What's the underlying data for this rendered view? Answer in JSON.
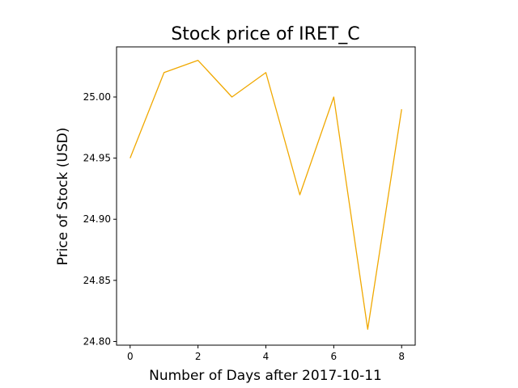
{
  "chart_data": {
    "type": "line",
    "title": "Stock price of IRET_C",
    "xlabel": "Number of Days after 2017-10-11",
    "ylabel": "Price of Stock (USD)",
    "xlim": [
      -0.4,
      8.4
    ],
    "ylim": [
      24.797,
      25.041
    ],
    "xticks": [
      0,
      2,
      4,
      6,
      8
    ],
    "xtick_labels": [
      "0",
      "2",
      "4",
      "6",
      "8"
    ],
    "yticks": [
      24.8,
      24.85,
      24.9,
      24.95,
      25.0
    ],
    "ytick_labels": [
      "24.80",
      "24.85",
      "24.90",
      "24.95",
      "25.00"
    ],
    "grid": false,
    "series": [
      {
        "color": "#f0a800",
        "x": [
          0,
          1,
          2,
          3,
          4,
          5,
          6,
          7,
          8
        ],
        "y": [
          24.95,
          25.02,
          25.03,
          25.0,
          25.02,
          24.92,
          25.0,
          24.81,
          24.99
        ]
      }
    ]
  }
}
